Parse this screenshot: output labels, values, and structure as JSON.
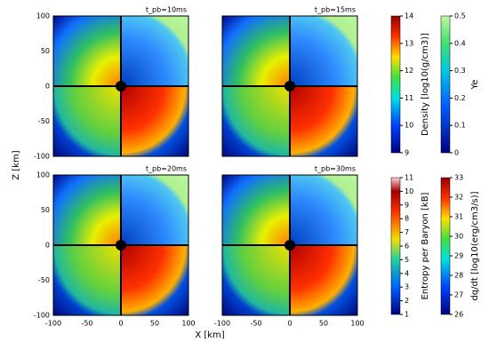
{
  "panels": [
    {
      "title": "t_pb=10ms"
    },
    {
      "title": "t_pb=15ms"
    },
    {
      "title": "t_pb=20ms"
    },
    {
      "title": "t_pb=30ms"
    }
  ],
  "y_axis": {
    "label": "Z [km]",
    "ticks": [
      "100",
      "50",
      "0",
      "-50",
      "-100"
    ]
  },
  "x_axis": {
    "label": "X [km]",
    "ticks": [
      "-100",
      "-50",
      "0",
      "50",
      "100"
    ]
  },
  "colorbars": [
    {
      "label": "Density [log10(g/cm3)]",
      "ticks": [
        "14",
        "13",
        "12",
        "11",
        "10",
        "9"
      ]
    },
    {
      "label": "Ye",
      "ticks": [
        "0.5",
        "0.4",
        "0.3",
        "0.2",
        "0.1",
        "0"
      ]
    },
    {
      "label": "Entropy per Baryon [kB]",
      "ticks": [
        "11",
        "10",
        "9",
        "8",
        "7",
        "6",
        "5",
        "4",
        "3",
        "2",
        "1"
      ]
    },
    {
      "label": "dq/dt [log10(erg/cm3/s)]",
      "ticks": [
        "33",
        "32",
        "31",
        "30",
        "29",
        "28",
        "27",
        "26"
      ]
    }
  ]
}
